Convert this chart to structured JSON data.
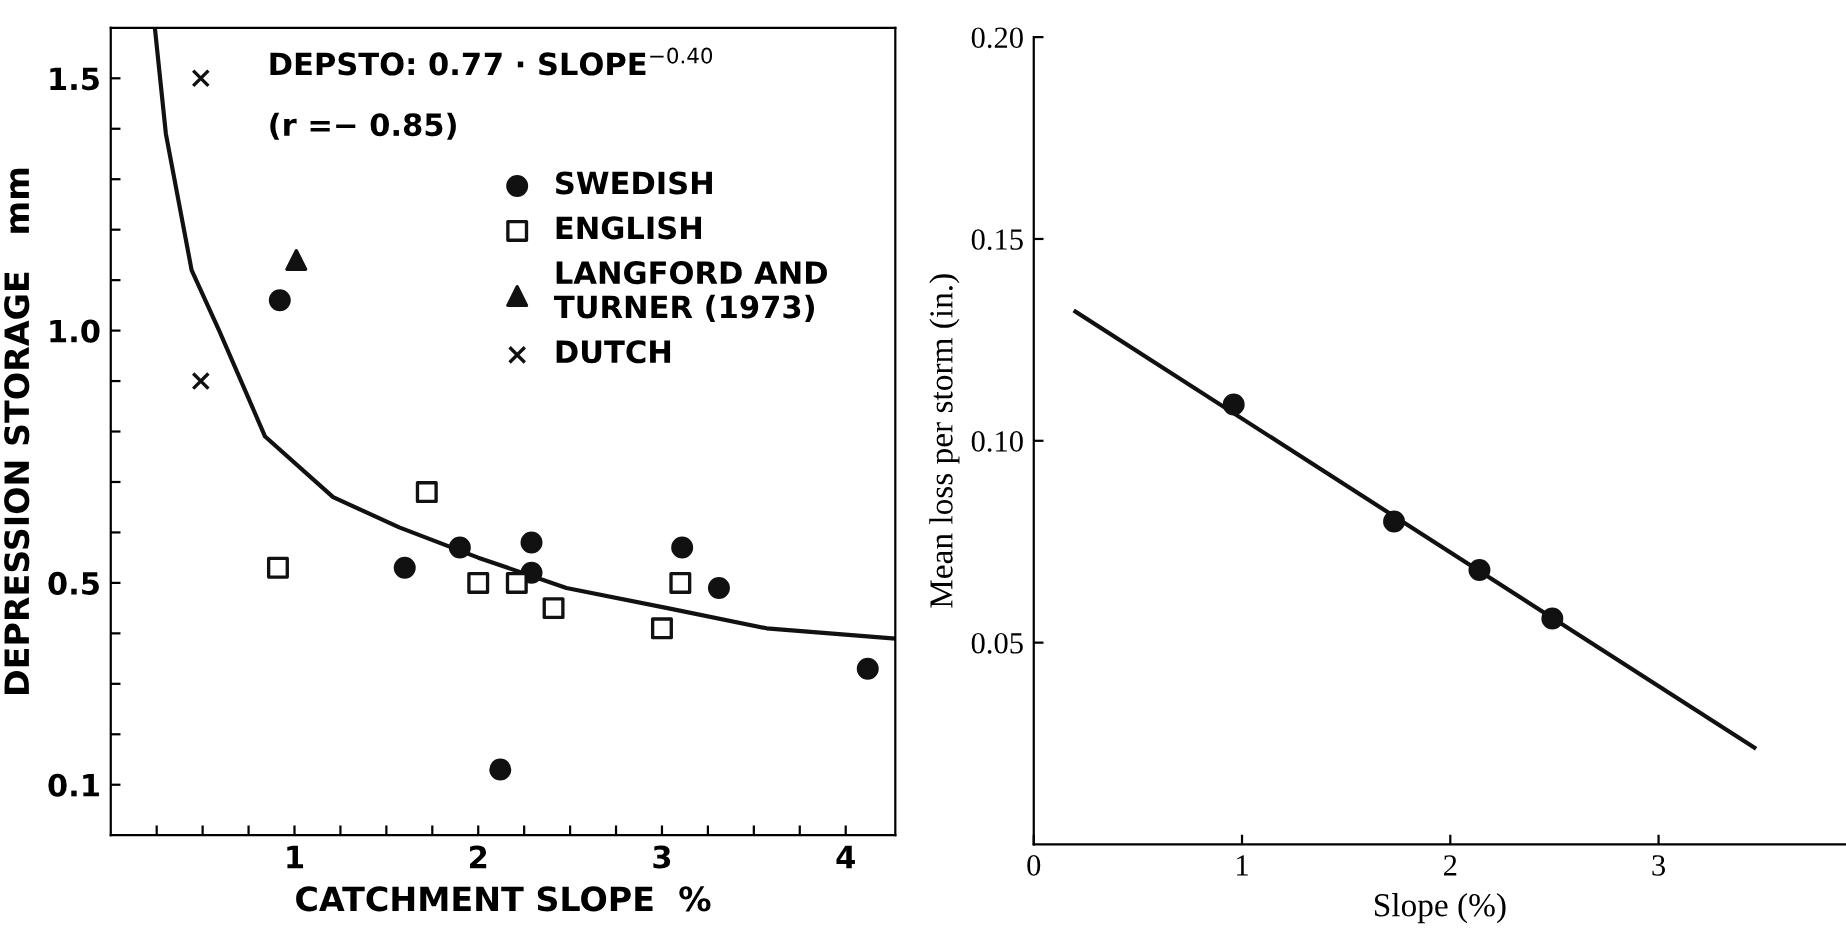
{
  "chart_data": [
    {
      "type": "scatter",
      "xlabel": "CATCHMENT SLOPE  %",
      "ylabel": "DEPRESSION STORAGE   mm",
      "annotations": [
        "DEPSTO: 0.77 · SLOPE$^{−0.40}$",
        "(r =− 0.85)"
      ],
      "xlim": [
        0,
        4.27
      ],
      "ylim": [
        0,
        1.6
      ],
      "xticks": [
        {
          "value": 0.25,
          "label": null
        },
        {
          "value": 0.5,
          "label": null
        },
        {
          "value": 0.75,
          "label": null
        },
        1,
        {
          "value": 1.25,
          "label": null
        },
        {
          "value": 1.5,
          "label": null
        },
        {
          "value": 1.75,
          "label": null
        },
        2,
        {
          "value": 2.25,
          "label": null
        },
        {
          "value": 2.5,
          "label": null
        },
        {
          "value": 2.75,
          "label": null
        },
        3,
        {
          "value": 3.25,
          "label": null
        },
        {
          "value": 3.5,
          "label": null
        },
        {
          "value": 3.75,
          "label": null
        },
        4
      ],
      "yticks": [
        0.1,
        {
          "value": 0.2,
          "label": null
        },
        {
          "value": 0.3,
          "label": null
        },
        {
          "value": 0.4,
          "label": null
        },
        0.5,
        {
          "value": 0.6,
          "label": null
        },
        {
          "value": 0.7,
          "label": null
        },
        {
          "value": 0.8,
          "label": null
        },
        {
          "value": 0.9,
          "label": null
        },
        {
          "value": 1.0,
          "label": "1.0"
        },
        {
          "value": 1.1,
          "label": null
        },
        {
          "value": 1.2,
          "label": null
        },
        {
          "value": 1.3,
          "label": null
        },
        {
          "value": 1.4,
          "label": null
        },
        {
          "value": 1.5,
          "label": "1.5"
        }
      ],
      "grid": false,
      "legend": "right",
      "series": [
        {
          "type": "line",
          "color": "#111111",
          "marker": "none",
          "line_style": "solid",
          "x": [
            0.24,
            0.3,
            0.44,
            0.59,
            0.84,
            1.21,
            1.57,
            2.0,
            2.48,
            3.03,
            3.57,
            4.26
          ],
          "values": [
            1.6,
            1.39,
            1.12,
            1.0,
            0.79,
            0.67,
            0.61,
            0.55,
            0.49,
            0.45,
            0.41,
            0.39
          ]
        },
        {
          "name": "SWEDISH",
          "color": "#111111",
          "marker": "circle",
          "x": [
            0.92,
            1.6,
            1.9,
            2.29,
            2.29,
            2.12,
            3.11,
            3.31,
            4.12
          ],
          "values": [
            1.06,
            0.53,
            0.57,
            0.58,
            0.52,
            0.13,
            0.57,
            0.49,
            0.33
          ]
        },
        {
          "name": "ENGLISH",
          "color": "#111111",
          "marker": "square",
          "x": [
            0.91,
            1.72,
            2.0,
            2.21,
            2.41,
            3.0,
            3.1
          ],
          "values": [
            0.53,
            0.68,
            0.5,
            0.5,
            0.45,
            0.41,
            0.5
          ]
        },
        {
          "name": "LANGFORD AND\nTURNER (1973)",
          "color": "#111111",
          "marker": "triangle",
          "x": [
            1.01
          ],
          "values": [
            1.14
          ]
        },
        {
          "name": "DUTCH",
          "color": "#111111",
          "marker": "cross",
          "x": [
            0.49,
            0.49
          ],
          "values": [
            1.5,
            0.9
          ]
        }
      ]
    },
    {
      "type": "scatter",
      "xlabel": "Slope (%)",
      "ylabel": "Mean loss per storm (in.)",
      "xlim": [
        0,
        3.9
      ],
      "ylim": [
        0,
        0.2
      ],
      "xticks": [
        0,
        1,
        2,
        3
      ],
      "yticks": [
        0.05,
        {
          "value": 0.1,
          "label": "0.10"
        },
        0.15,
        {
          "value": 0.2,
          "label": "0.20"
        }
      ],
      "grid": false,
      "legend": false,
      "series": [
        {
          "type": "line",
          "color": "#111111",
          "marker": "none",
          "line_style": "solid",
          "x": [
            0.2,
            3.46
          ],
          "values": [
            0.132,
            0.024
          ]
        },
        {
          "color": "#111111",
          "marker": "circle",
          "x": [
            0.96,
            1.73,
            2.14,
            2.49
          ],
          "values": [
            0.109,
            0.08,
            0.068,
            0.056
          ]
        }
      ]
    }
  ]
}
